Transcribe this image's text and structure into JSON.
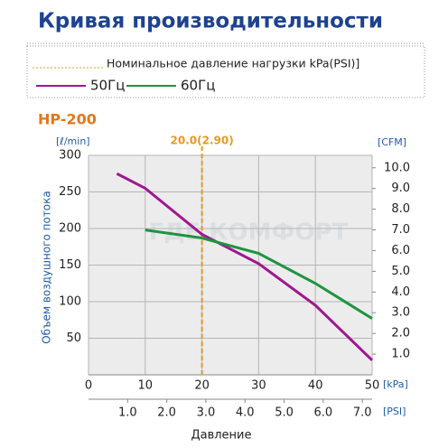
{
  "chart_data": {
    "type": "line",
    "title": "Кривая производительности",
    "legend_heading": "Номинальное давление нагрузки kPa(PSI)]",
    "model": "HP-200",
    "y_unit": "[ℓ/min]",
    "y_label": "Объем воздушного потока",
    "y2_unit": "[CFM]",
    "x_unit": "[kPa]",
    "x2_unit": "[PSI]",
    "x_label": "Давление",
    "watermark": "ГДЕ КОМФОРТ",
    "marker": {
      "x": 20,
      "label": "20.0(2.90)",
      "color": "#e89a1e"
    },
    "series": [
      {
        "name": "50Гц",
        "color": "#a0178f",
        "x": [
          5,
          10,
          20,
          30,
          40,
          50
        ],
        "values": [
          275,
          255,
          192,
          152,
          95,
          20
        ]
      },
      {
        "name": "60Гц",
        "color": "#1e9440",
        "x": [
          10,
          20,
          30,
          40,
          50
        ],
        "values": [
          198,
          187,
          166,
          125,
          77
        ]
      }
    ],
    "xlim": [
      0,
      50
    ],
    "xticks": [
      0,
      10,
      20,
      30,
      40,
      50
    ],
    "x2lim": [
      0,
      7.25
    ],
    "x2ticks": [
      {
        "value": 1,
        "label": "1.0"
      },
      {
        "value": 2,
        "label": "2.0"
      },
      {
        "value": 3,
        "label": "3.0"
      },
      {
        "value": 4,
        "label": "4.0"
      },
      {
        "value": 5,
        "label": "5.0"
      },
      {
        "value": 6,
        "label": "6.0"
      },
      {
        "value": 7,
        "label": "7.0"
      }
    ],
    "ylim": [
      0,
      300
    ],
    "yticks": [
      50,
      100,
      150,
      200,
      250,
      300
    ],
    "y2lim": [
      0,
      10.6
    ],
    "y2ticks": [
      {
        "value": 1,
        "label": "1.0"
      },
      {
        "value": 2,
        "label": "2.0"
      },
      {
        "value": 3,
        "label": "3.0"
      },
      {
        "value": 4,
        "label": "4.0"
      },
      {
        "value": 5,
        "label": "5.0"
      },
      {
        "value": 6,
        "label": "6.0"
      },
      {
        "value": 7,
        "label": "7.0"
      },
      {
        "value": 8,
        "label": "8.0"
      },
      {
        "value": 9,
        "label": "9.0"
      },
      {
        "value": 10,
        "label": "10.0"
      }
    ],
    "grid": true
  }
}
